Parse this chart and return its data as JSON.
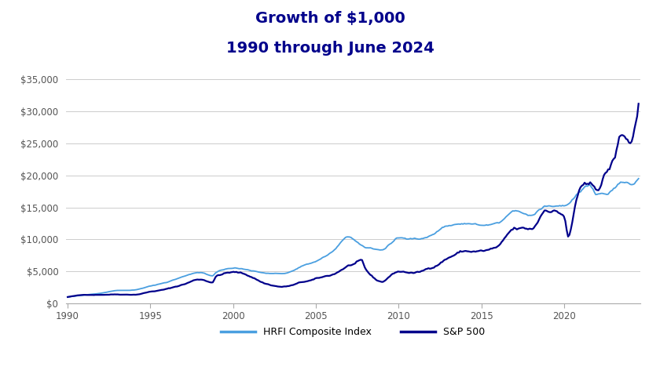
{
  "title_line1": "Growth of $1,000",
  "title_line2": "1990 through June 2024",
  "title_color": "#00008B",
  "title_fontsize": 14,
  "background_color": "#ffffff",
  "line1_label": "HRFI Composite Index",
  "line1_color": "#4A9FE0",
  "line2_label": "S&P 500",
  "line2_color": "#00008B",
  "yticks": [
    0,
    5000,
    10000,
    15000,
    20000,
    25000,
    30000,
    35000
  ],
  "ytick_labels": [
    "$0",
    "$5,000",
    "$10,000",
    "$15,000",
    "$20,000",
    "$25,000",
    "$30,000",
    "$35,000"
  ],
  "xticks": [
    1990,
    1995,
    2000,
    2005,
    2010,
    2015,
    2020
  ],
  "ylim": [
    0,
    37000
  ],
  "xlim": [
    1989.9,
    2024.6
  ],
  "grid_color": "#cccccc",
  "grid_linewidth": 0.7,
  "sp500_t": [
    1990.0,
    1991.0,
    1992.0,
    1993.0,
    1994.0,
    1995.0,
    1996.0,
    1997.0,
    1998.0,
    1998.75,
    1999.0,
    2000.0,
    2001.0,
    2002.0,
    2003.0,
    2003.5,
    2004.0,
    2005.0,
    2006.0,
    2007.0,
    2007.75,
    2008.0,
    2009.0,
    2009.5,
    2010.0,
    2011.0,
    2012.0,
    2013.0,
    2014.0,
    2015.0,
    2016.0,
    2017.0,
    2018.0,
    2019.0,
    2020.0,
    2020.25,
    2020.75,
    2021.0,
    2022.0,
    2022.5,
    2023.0,
    2023.5,
    2024.0,
    2024.5
  ],
  "sp500_v": [
    1000,
    1300,
    1400,
    1500,
    1520,
    2050,
    2500,
    3300,
    4200,
    3800,
    4900,
    5500,
    4800,
    3500,
    3000,
    3200,
    3600,
    4200,
    4900,
    6500,
    7000,
    5500,
    3500,
    4500,
    5200,
    5000,
    5900,
    7700,
    8800,
    8800,
    9300,
    11700,
    11500,
    15000,
    14200,
    10700,
    16500,
    18500,
    17700,
    20000,
    22000,
    26000,
    25000,
    31200
  ],
  "hfri_t": [
    1990.0,
    1991.0,
    1992.0,
    1993.0,
    1994.0,
    1995.0,
    1996.0,
    1997.0,
    1998.0,
    1998.75,
    1999.0,
    2000.0,
    2001.0,
    2002.0,
    2003.0,
    2004.0,
    2005.0,
    2006.0,
    2007.0,
    2008.0,
    2009.0,
    2009.5,
    2010.0,
    2011.0,
    2012.0,
    2013.0,
    2014.0,
    2015.0,
    2016.0,
    2017.0,
    2018.0,
    2019.0,
    2020.0,
    2020.5,
    2021.0,
    2021.5,
    2022.0,
    2022.5,
    2023.0,
    2023.5,
    2024.0,
    2024.5
  ],
  "hfri_v": [
    1000,
    1300,
    1600,
    2100,
    2200,
    2900,
    3500,
    4300,
    5000,
    4400,
    5000,
    5500,
    5200,
    4700,
    4600,
    5500,
    6500,
    8000,
    10500,
    9000,
    8500,
    9500,
    10500,
    10200,
    11000,
    13000,
    13500,
    13200,
    13400,
    15000,
    14200,
    15800,
    15500,
    16500,
    17800,
    18500,
    17000,
    17000,
    18000,
    19000,
    18500,
    19500
  ]
}
